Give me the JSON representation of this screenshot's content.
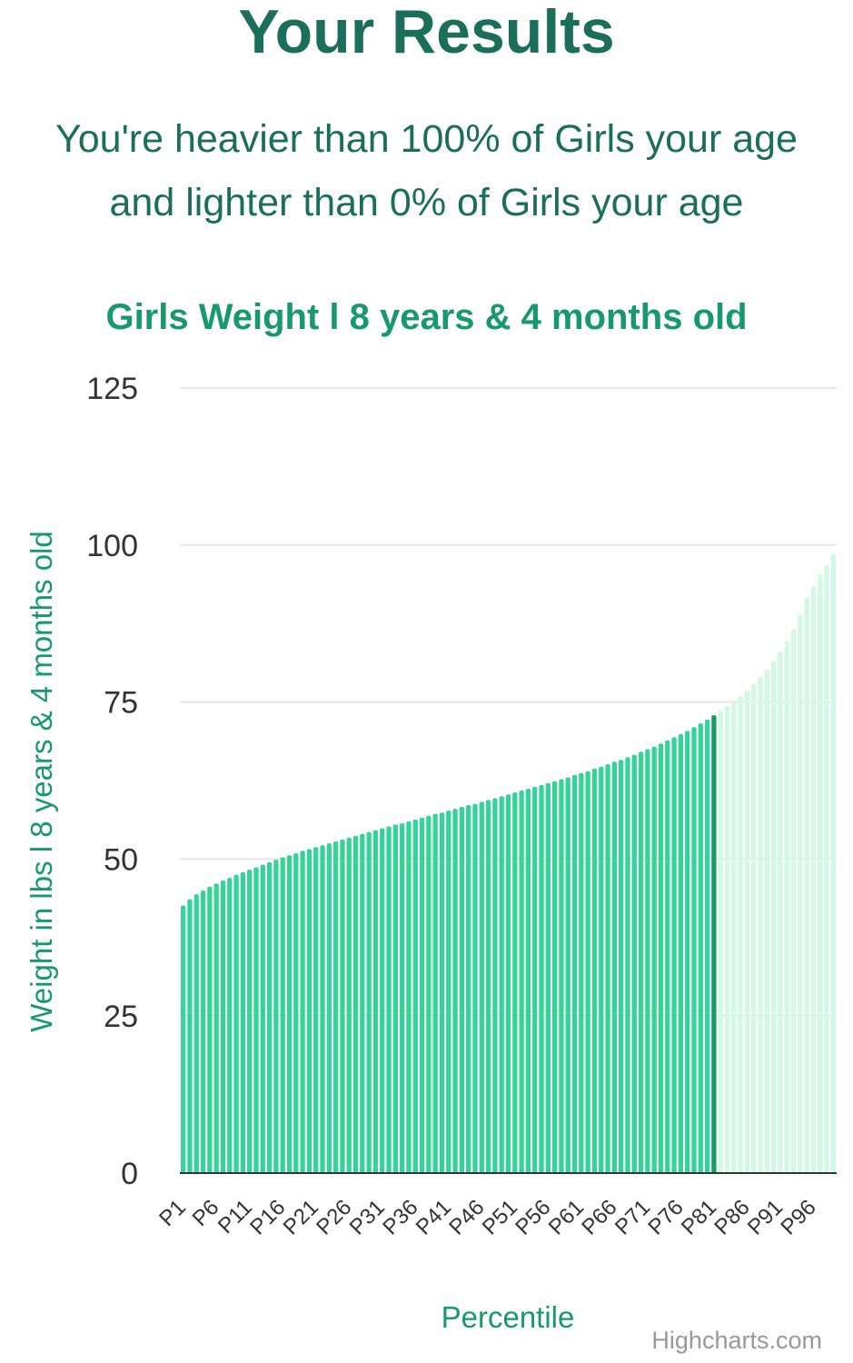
{
  "page_title": "Your Results",
  "summary": {
    "line1": "You're heavier than 100% of Girls your age",
    "line2": "and lighter than 0% of Girls your age"
  },
  "credit": "Highcharts.com",
  "colors": {
    "bar": "#36d399",
    "bar_highlight": "#179b6b",
    "bar_light": "#d1f9e5",
    "grid": "#e6e6e6",
    "axis_title": "#169a6b",
    "tick_text": "#333333"
  },
  "chart_data": {
    "type": "bar",
    "title": "Girls Weight l 8 years & 4 months old",
    "xlabel": "Percentile",
    "ylabel": "Weight in lbs l 8 years & 4 months old",
    "ylim": [
      0,
      125
    ],
    "yticks": [
      0,
      25,
      50,
      75,
      100,
      125
    ],
    "grid": true,
    "legend": "none",
    "x_tick_labels": [
      "P1",
      "P6",
      "P11",
      "P16",
      "P21",
      "P26",
      "P31",
      "P36",
      "P41",
      "P46",
      "P51",
      "P56",
      "P61",
      "P66",
      "P71",
      "P76",
      "P81",
      "P86",
      "P91",
      "P96"
    ],
    "highlight_category": "P81",
    "categories": [
      "P1",
      "P2",
      "P3",
      "P4",
      "P5",
      "P6",
      "P7",
      "P8",
      "P9",
      "P10",
      "P11",
      "P12",
      "P13",
      "P14",
      "P15",
      "P16",
      "P17",
      "P18",
      "P19",
      "P20",
      "P21",
      "P22",
      "P23",
      "P24",
      "P25",
      "P26",
      "P27",
      "P28",
      "P29",
      "P30",
      "P31",
      "P32",
      "P33",
      "P34",
      "P35",
      "P36",
      "P37",
      "P38",
      "P39",
      "P40",
      "P41",
      "P42",
      "P43",
      "P44",
      "P45",
      "P46",
      "P47",
      "P48",
      "P49",
      "P50",
      "P51",
      "P52",
      "P53",
      "P54",
      "P55",
      "P56",
      "P57",
      "P58",
      "P59",
      "P60",
      "P61",
      "P62",
      "P63",
      "P64",
      "P65",
      "P66",
      "P67",
      "P68",
      "P69",
      "P70",
      "P71",
      "P72",
      "P73",
      "P74",
      "P75",
      "P76",
      "P77",
      "P78",
      "P79",
      "P80",
      "P81",
      "P82",
      "P83",
      "P84",
      "P85",
      "P86",
      "P87",
      "P88",
      "P89",
      "P90",
      "P91",
      "P92",
      "P93",
      "P94",
      "P95",
      "P96",
      "P97",
      "P98",
      "P99"
    ],
    "values": [
      42.6,
      43.6,
      44.4,
      45.0,
      45.6,
      46.1,
      46.6,
      47.0,
      47.5,
      47.9,
      48.3,
      48.7,
      49.1,
      49.5,
      49.9,
      50.3,
      50.6,
      50.9,
      51.3,
      51.6,
      51.9,
      52.2,
      52.5,
      52.8,
      53.1,
      53.4,
      53.7,
      54.0,
      54.3,
      54.6,
      54.9,
      55.2,
      55.5,
      55.7,
      56.0,
      56.3,
      56.6,
      56.9,
      57.2,
      57.4,
      57.7,
      58.0,
      58.3,
      58.6,
      58.8,
      59.1,
      59.4,
      59.7,
      60.0,
      60.3,
      60.6,
      60.9,
      61.2,
      61.5,
      61.8,
      62.1,
      62.4,
      62.7,
      63.0,
      63.4,
      63.7,
      64.0,
      64.4,
      64.7,
      65.1,
      65.5,
      65.8,
      66.2,
      66.6,
      67.1,
      67.5,
      67.9,
      68.4,
      68.9,
      69.4,
      69.9,
      70.4,
      71.0,
      71.6,
      72.2,
      72.9,
      73.6,
      74.4,
      75.2,
      76.0,
      76.9,
      77.9,
      79.0,
      80.2,
      81.5,
      83.0,
      84.7,
      86.6,
      88.9,
      91.6,
      93.4,
      95.3,
      96.8,
      98.6
    ]
  }
}
